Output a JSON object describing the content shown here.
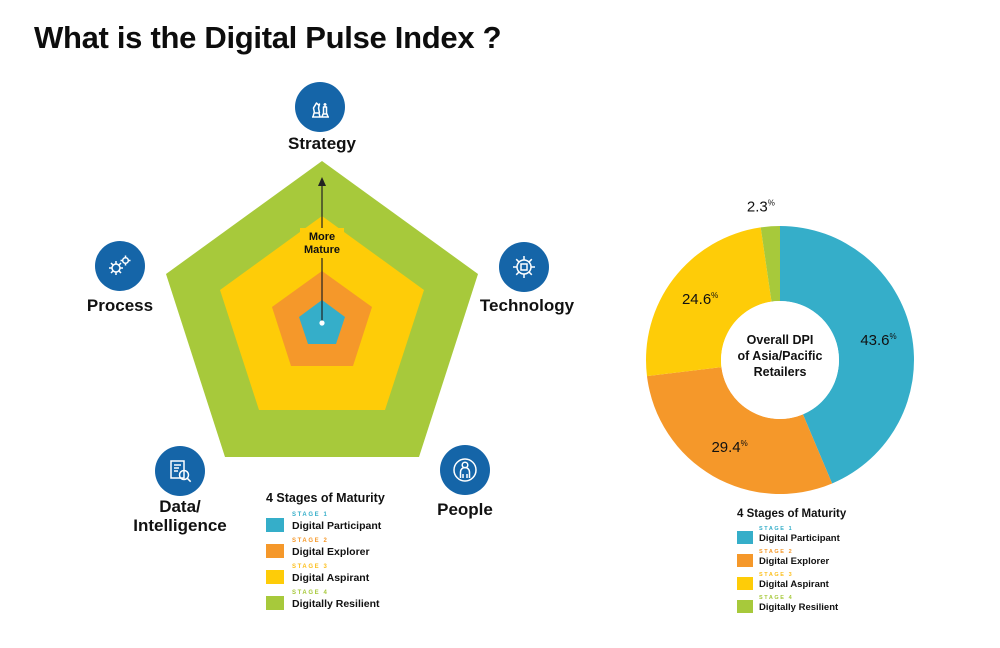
{
  "title": "What is the Digital Pulse Index ?",
  "colors": {
    "stage1": "#35aec9",
    "stage2": "#f5982a",
    "stage3": "#fecc08",
    "stage4": "#a7c93b",
    "icon_bg": "#1565a8",
    "stage1_label": "#35aec9",
    "stage2_label": "#f5982a",
    "stage3_label": "#fcbf1c",
    "stage4_label": "#a7c93b"
  },
  "pentagon": {
    "axis_label": "More\nMature",
    "dimensions": [
      {
        "label": "Strategy",
        "icon": "chess-pieces-icon"
      },
      {
        "label": "Technology",
        "icon": "circuit-gear-icon"
      },
      {
        "label": "People",
        "icon": "person-icon"
      },
      {
        "label": "Data/\nIntelligence",
        "icon": "data-search-icon"
      },
      {
        "label": "Process",
        "icon": "gears-icon"
      }
    ]
  },
  "legend_left": {
    "title": "4 Stages of Maturity",
    "stages": [
      {
        "num": "STAGE 1",
        "name": "Digital Participant"
      },
      {
        "num": "STAGE 2",
        "name": "Digital Explorer"
      },
      {
        "num": "STAGE 3",
        "name": "Digital Aspirant"
      },
      {
        "num": "STAGE 4",
        "name": "Digitally Resilient"
      }
    ]
  },
  "legend_right": {
    "title": "4 Stages of Maturity",
    "stages": [
      {
        "num": "STAGE 1",
        "name": "Digital Participant"
      },
      {
        "num": "STAGE 2",
        "name": "Digital Explorer"
      },
      {
        "num": "STAGE 3",
        "name": "Digital Aspirant"
      },
      {
        "num": "STAGE 4",
        "name": "Digitally Resilient"
      }
    ]
  },
  "chart_data": {
    "type": "pie",
    "variant": "donut",
    "title": "Overall DPI of Asia/Pacific Retailers",
    "center_label_lines": [
      "Overall DPI",
      "of Asia/Pacific",
      "Retailers"
    ],
    "categories": [
      "Digital Participant",
      "Digital Explorer",
      "Digital Aspirant",
      "Digitally Resilient"
    ],
    "values": [
      43.6,
      29.4,
      24.6,
      2.3
    ],
    "value_labels": [
      "43.6",
      "29.4",
      "24.6",
      "2.3"
    ],
    "unit": "%",
    "start": "12 o'clock",
    "direction": "clockwise"
  }
}
